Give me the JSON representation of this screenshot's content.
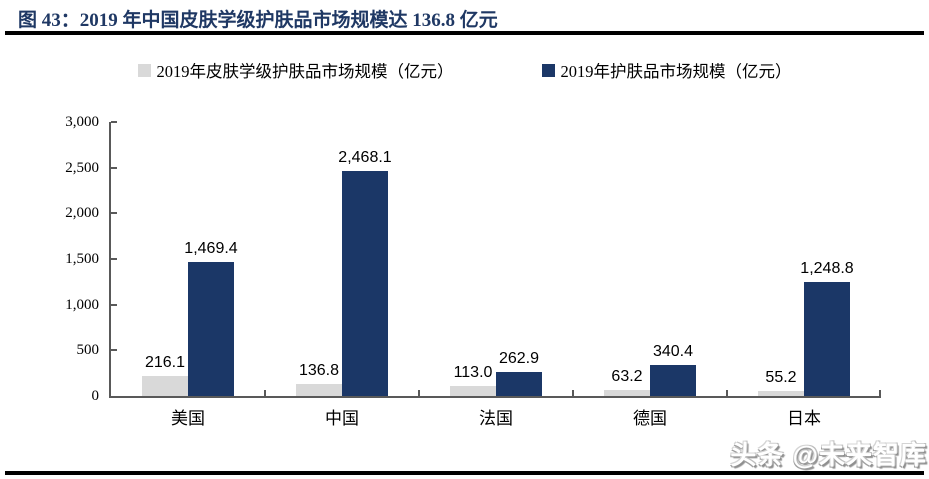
{
  "figure": {
    "title": "图 43：2019 年中国皮肤学级护肤品市场规模达 136.8 亿元"
  },
  "watermark": {
    "text": "头条 @未来智库"
  },
  "colors": {
    "title_navy": "#1f3864",
    "bar_navy": "#1b3767",
    "bar_gray": "#d9d9d9",
    "axis_gray": "#595959",
    "rule_black": "#000000",
    "label_black": "#000000"
  },
  "chart_data": {
    "type": "bar",
    "title": "2019 年中国皮肤学级护肤品市场规模达 136.8 亿元",
    "categories": [
      "美国",
      "中国",
      "法国",
      "德国",
      "日本"
    ],
    "series": [
      {
        "name": "2019年皮肤学级护肤品市场规模（亿元）",
        "color": "#d9d9d9",
        "values": [
          216.1,
          136.8,
          113.0,
          63.2,
          55.2
        ],
        "labels": [
          "216.1",
          "136.8",
          "113.0",
          "63.2",
          "55.2"
        ]
      },
      {
        "name": "2019年护肤品市场规模（亿元）",
        "color": "#1b3767",
        "values": [
          1469.4,
          2468.1,
          262.9,
          340.4,
          1248.8
        ],
        "labels": [
          "1,469.4",
          "2,468.1",
          "262.9",
          "340.4",
          "1,248.8"
        ]
      }
    ],
    "xlabel": "",
    "ylabel": "",
    "ylim": [
      0,
      3000
    ],
    "ytick_values": [
      0,
      500,
      1000,
      1500,
      2000,
      2500,
      3000
    ],
    "ytick_labels": [
      "0",
      "500",
      "1,000",
      "1,500",
      "2,000",
      "2,500",
      "3,000"
    ],
    "legend_position": "top",
    "grid": false
  }
}
